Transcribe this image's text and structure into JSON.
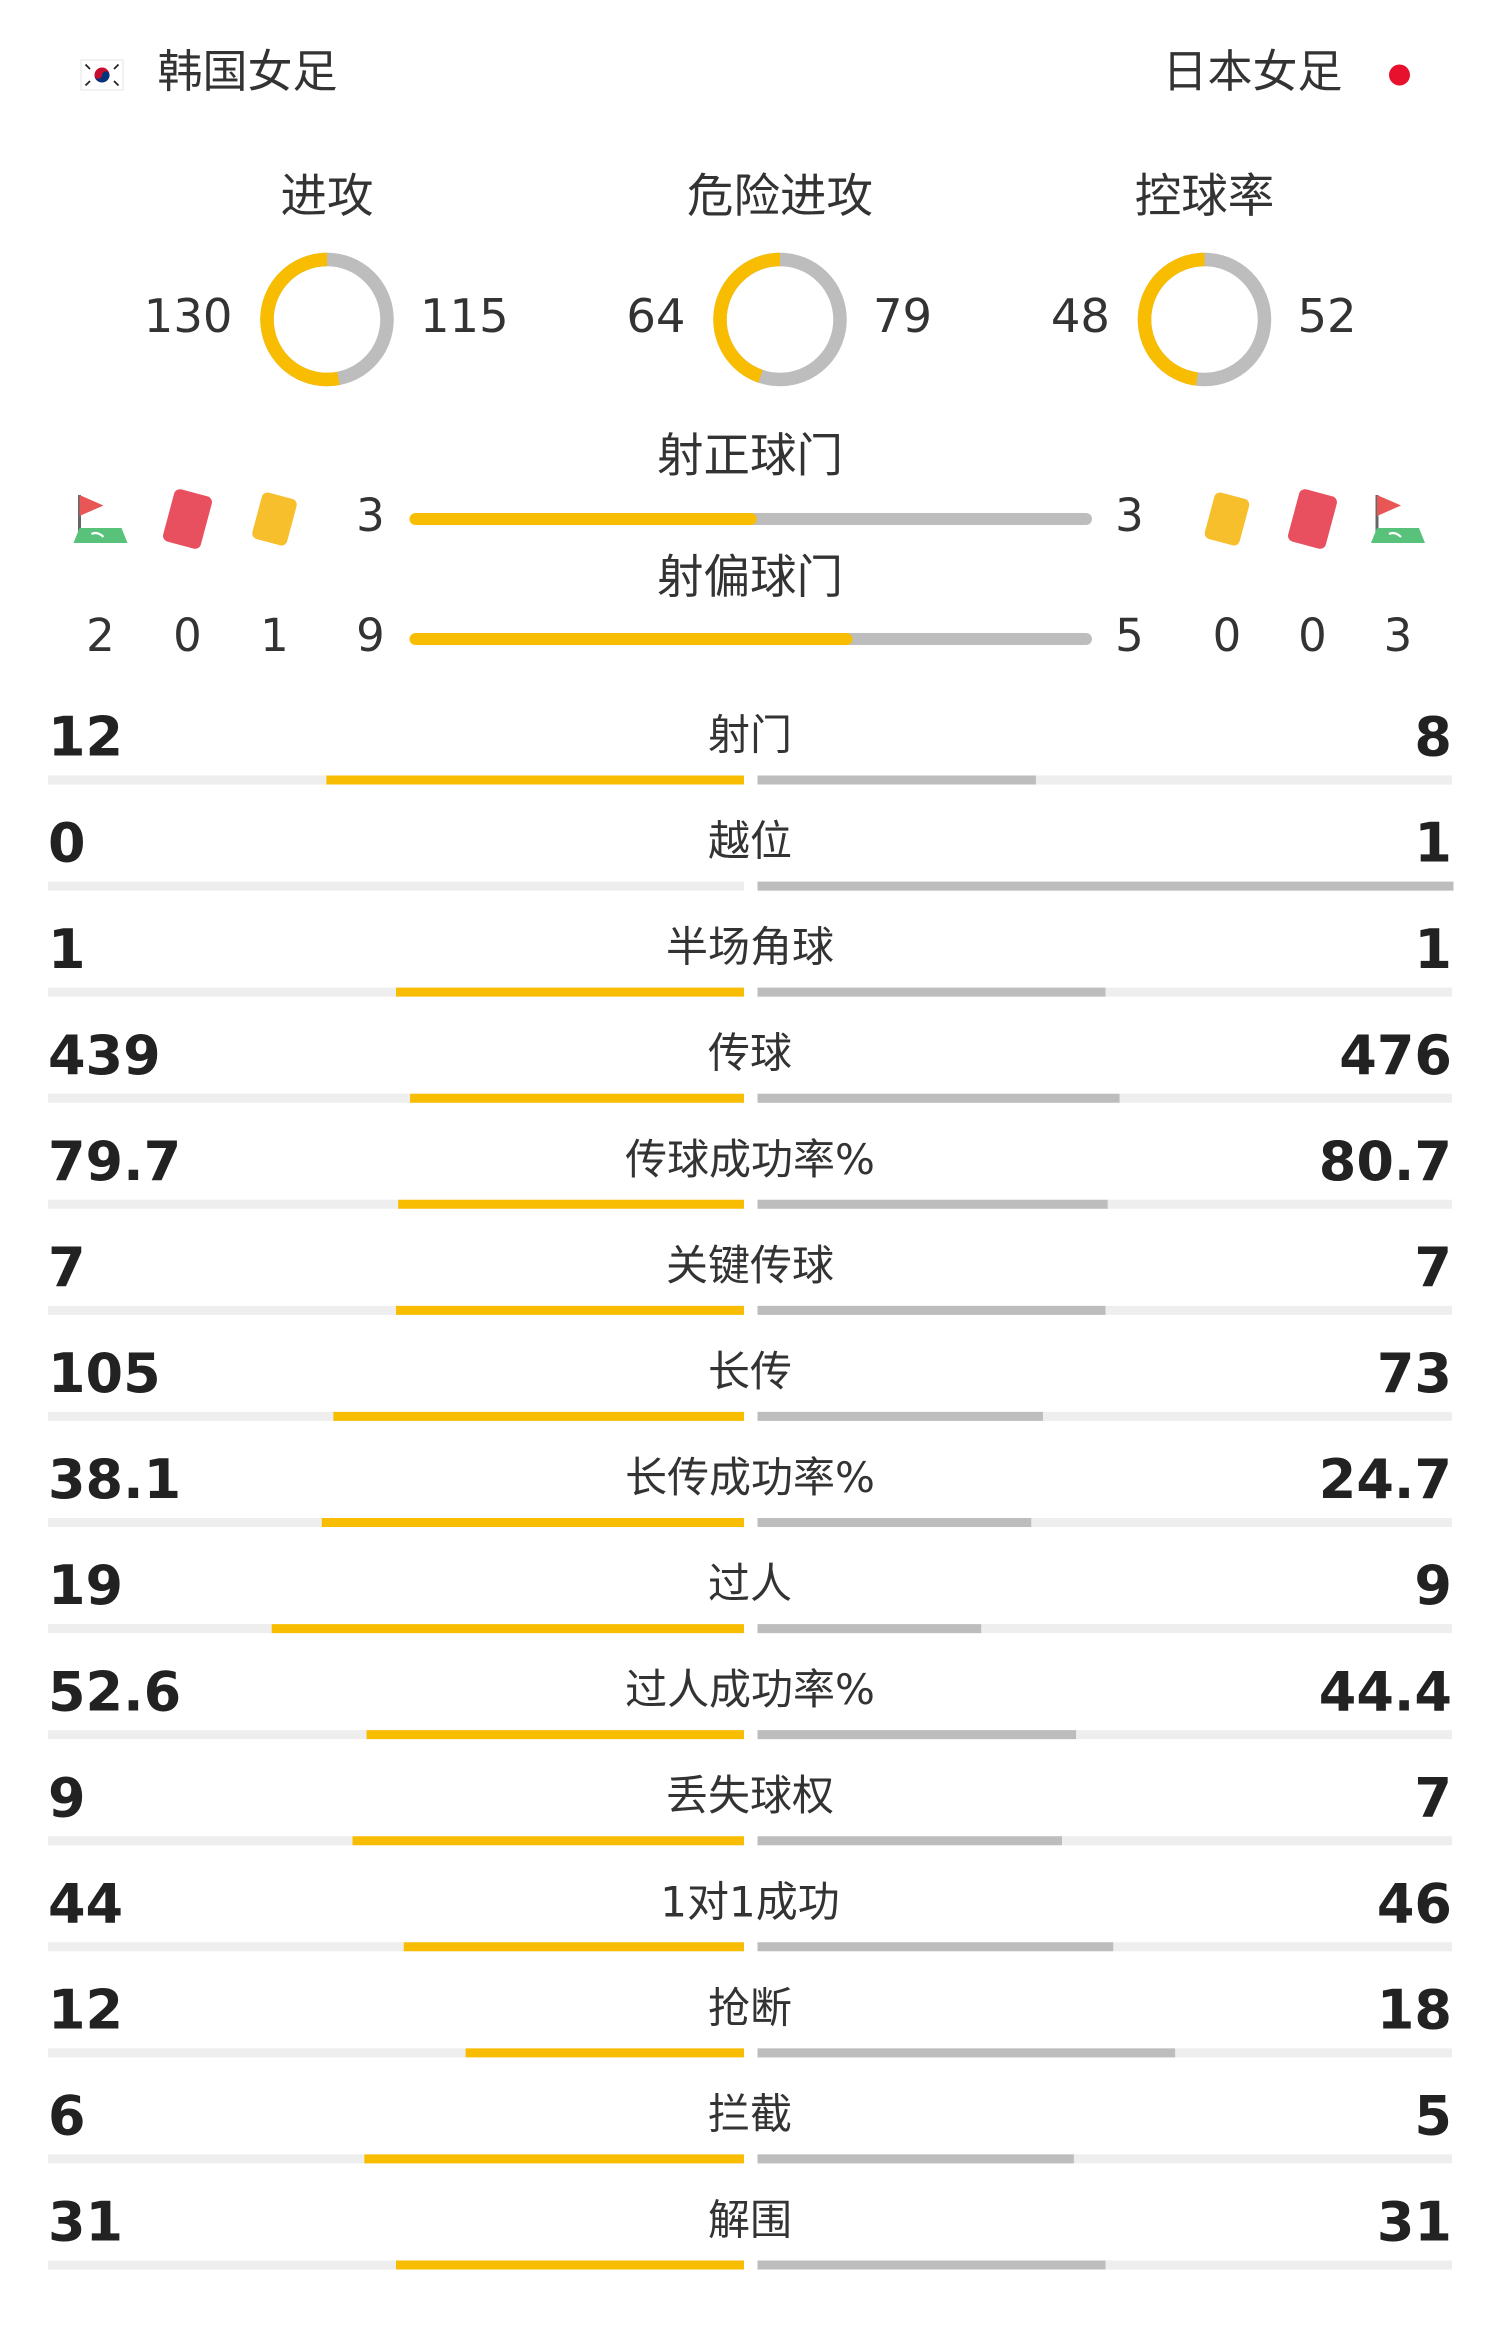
{
  "teams": {
    "home": "韩国女足",
    "away": "日本女足"
  },
  "rings": [
    {
      "label": "进攻",
      "home": 130,
      "away": 115
    },
    {
      "label": "危险进攻",
      "home": 64,
      "away": 79
    },
    {
      "label": "控球率",
      "home": 48,
      "away": 52
    }
  ],
  "shots": [
    {
      "label": "射正球门",
      "home": 3,
      "away": 3
    },
    {
      "label": "射偏球门",
      "home": 9,
      "away": 5
    }
  ],
  "events": {
    "home": {
      "corners": 2,
      "red": 0,
      "yellow": 1
    },
    "away": {
      "yellow": 0,
      "red": 0,
      "corners": 3
    }
  },
  "stats": [
    {
      "label": "射门",
      "home": 12,
      "away": 8
    },
    {
      "label": "越位",
      "home": 0,
      "away": 1
    },
    {
      "label": "半场角球",
      "home": 1,
      "away": 1
    },
    {
      "label": "传球",
      "home": 439,
      "away": 476
    },
    {
      "label": "传球成功率%",
      "home": 79.7,
      "away": 80.7
    },
    {
      "label": "关键传球",
      "home": 7,
      "away": 7
    },
    {
      "label": "长传",
      "home": 105,
      "away": 73
    },
    {
      "label": "长传成功率%",
      "home": 38.1,
      "away": 24.7
    },
    {
      "label": "过人",
      "home": 19,
      "away": 9
    },
    {
      "label": "过人成功率%",
      "home": 52.6,
      "away": 44.4
    },
    {
      "label": "丢失球权",
      "home": 9,
      "away": 7
    },
    {
      "label": "1对1成功",
      "home": 44,
      "away": 46
    },
    {
      "label": "抢断",
      "home": 12,
      "away": 18
    },
    {
      "label": "拦截",
      "home": 6,
      "away": 5
    },
    {
      "label": "解围",
      "home": 31,
      "away": 31
    }
  ]
}
